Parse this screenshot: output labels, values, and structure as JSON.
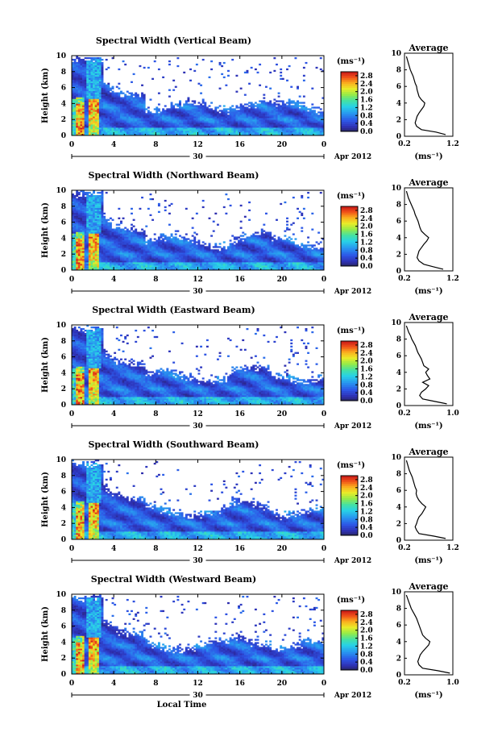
{
  "chart_data": [
    {
      "type": "heatmap",
      "title": "Spectral Width (Vertical Beam)",
      "ylabel": "Height (km)",
      "y_ticks": [
        "0",
        "2",
        "4",
        "6",
        "8",
        "10"
      ],
      "x_ticks": [
        "0",
        "4",
        "8",
        "12",
        "16",
        "20",
        "0"
      ],
      "date_day": "30",
      "date_label": "Apr 2012",
      "ylim": [
        0,
        10
      ],
      "xlim": [
        0,
        24
      ],
      "colorbar": {
        "unit": "(ms⁻¹)",
        "ticks": [
          "0.0",
          "0.4",
          "0.8",
          "1.2",
          "1.6",
          "2.0",
          "2.4",
          "2.8"
        ],
        "range": [
          0.0,
          3.0
        ]
      },
      "average_profile": {
        "title": "Average",
        "xlabel": "(ms⁻¹)",
        "x_ticks": [
          "0.2",
          "1.2"
        ],
        "xlim": [
          0.2,
          1.2
        ],
        "ylim": [
          0,
          10
        ],
        "y_ticks": [
          "0",
          "2",
          "4",
          "6",
          "8",
          "10"
        ],
        "heights": [
          0.2,
          0.5,
          0.8,
          1.2,
          1.6,
          2.0,
          2.4,
          2.8,
          3.2,
          3.6,
          4.0,
          4.4,
          4.8,
          5.2,
          5.6,
          6.0,
          6.4,
          6.8,
          7.2,
          7.6,
          8.0,
          8.4,
          8.8,
          9.2,
          9.6
        ],
        "values": [
          1.05,
          0.85,
          0.55,
          0.45,
          0.42,
          0.44,
          0.46,
          0.5,
          0.55,
          0.6,
          0.62,
          0.55,
          0.5,
          0.48,
          0.46,
          0.45,
          0.42,
          0.4,
          0.38,
          0.35,
          0.32,
          0.3,
          0.28,
          0.26,
          0.24
        ]
      }
    },
    {
      "type": "heatmap",
      "title": "Spectral Width (Northward Beam)",
      "ylabel": "Height (km)",
      "y_ticks": [
        "0",
        "2",
        "4",
        "6",
        "8",
        "10"
      ],
      "x_ticks": [
        "0",
        "4",
        "8",
        "12",
        "16",
        "20",
        "0"
      ],
      "date_day": "30",
      "date_label": "Apr 2012",
      "ylim": [
        0,
        10
      ],
      "xlim": [
        0,
        24
      ],
      "colorbar": {
        "unit": "(ms⁻¹)",
        "ticks": [
          "0.0",
          "0.4",
          "0.8",
          "1.2",
          "1.6",
          "2.0",
          "2.4",
          "2.8"
        ],
        "range": [
          0.0,
          3.0
        ]
      },
      "average_profile": {
        "title": "Average",
        "xlabel": "(ms⁻¹)",
        "x_ticks": [
          "0.2",
          "1.2"
        ],
        "xlim": [
          0.2,
          1.2
        ],
        "ylim": [
          0,
          10
        ],
        "y_ticks": [
          "0",
          "2",
          "4",
          "6",
          "8",
          "10"
        ],
        "heights": [
          0.2,
          0.5,
          0.8,
          1.2,
          1.6,
          2.0,
          2.4,
          2.8,
          3.2,
          3.6,
          4.0,
          4.4,
          4.8,
          5.2,
          5.6,
          6.0,
          6.4,
          6.8,
          7.2,
          7.6,
          8.0,
          8.4,
          8.8,
          9.2,
          9.6
        ],
        "values": [
          1.0,
          0.8,
          0.6,
          0.5,
          0.46,
          0.48,
          0.5,
          0.55,
          0.6,
          0.66,
          0.7,
          0.62,
          0.55,
          0.52,
          0.5,
          0.48,
          0.45,
          0.42,
          0.4,
          0.37,
          0.34,
          0.31,
          0.28,
          0.26,
          0.24
        ]
      }
    },
    {
      "type": "heatmap",
      "title": "Spectral Width (Eastward Beam)",
      "ylabel": "Height (km)",
      "y_ticks": [
        "0",
        "2",
        "4",
        "6",
        "8",
        "10"
      ],
      "x_ticks": [
        "0",
        "4",
        "8",
        "12",
        "16",
        "20",
        "0"
      ],
      "date_day": "30",
      "date_label": "Apr 2012",
      "ylim": [
        0,
        10
      ],
      "xlim": [
        0,
        24
      ],
      "colorbar": {
        "unit": "(ms⁻¹)",
        "ticks": [
          "0.0",
          "0.4",
          "0.8",
          "1.2",
          "1.6",
          "2.0",
          "2.4",
          "2.8"
        ],
        "range": [
          0.0,
          3.0
        ]
      },
      "average_profile": {
        "title": "Average",
        "xlabel": "(ms⁻¹)",
        "x_ticks": [
          "0.2",
          "1.0"
        ],
        "xlim": [
          0.2,
          1.0
        ],
        "ylim": [
          0,
          10
        ],
        "y_ticks": [
          "0",
          "2",
          "4",
          "6",
          "8",
          "10"
        ],
        "heights": [
          0.2,
          0.5,
          0.8,
          1.2,
          1.6,
          2.0,
          2.4,
          2.8,
          3.2,
          3.6,
          4.0,
          4.4,
          4.8,
          5.2,
          5.6,
          6.0,
          6.4,
          6.8,
          7.2,
          7.6,
          8.0,
          8.4,
          8.8,
          9.2,
          9.6
        ],
        "values": [
          0.9,
          0.7,
          0.5,
          0.45,
          0.48,
          0.55,
          0.6,
          0.5,
          0.62,
          0.58,
          0.55,
          0.6,
          0.52,
          0.5,
          0.48,
          0.45,
          0.42,
          0.4,
          0.38,
          0.35,
          0.32,
          0.3,
          0.27,
          0.25,
          0.23
        ]
      }
    },
    {
      "type": "heatmap",
      "title": "Spectral Width (Southward Beam)",
      "ylabel": "Height (km)",
      "y_ticks": [
        "0",
        "2",
        "4",
        "6",
        "8",
        "10"
      ],
      "x_ticks": [
        "0",
        "4",
        "8",
        "12",
        "16",
        "20",
        "0"
      ],
      "date_day": "30",
      "date_label": "Apr 2012",
      "ylim": [
        0,
        10
      ],
      "xlim": [
        0,
        24
      ],
      "colorbar": {
        "unit": "(ms⁻¹)",
        "ticks": [
          "0.0",
          "0.4",
          "0.8",
          "1.2",
          "1.6",
          "2.0",
          "2.4",
          "2.8"
        ],
        "range": [
          0.0,
          3.0
        ]
      },
      "average_profile": {
        "title": "Average",
        "xlabel": "(ms⁻¹)",
        "x_ticks": [
          "0.2",
          "1.2"
        ],
        "xlim": [
          0.2,
          1.2
        ],
        "ylim": [
          0,
          10
        ],
        "y_ticks": [
          "0",
          "2",
          "4",
          "6",
          "8",
          "10"
        ],
        "heights": [
          0.2,
          0.5,
          0.8,
          1.2,
          1.6,
          2.0,
          2.4,
          2.8,
          3.2,
          3.6,
          4.0,
          4.4,
          4.8,
          5.2,
          5.6,
          6.0,
          6.4,
          6.8,
          7.2,
          7.6,
          8.0,
          8.4,
          8.8,
          9.2,
          9.6
        ],
        "values": [
          1.05,
          0.8,
          0.5,
          0.45,
          0.42,
          0.45,
          0.47,
          0.5,
          0.56,
          0.6,
          0.64,
          0.56,
          0.5,
          0.46,
          0.44,
          0.45,
          0.42,
          0.4,
          0.38,
          0.36,
          0.33,
          0.3,
          0.28,
          0.26,
          0.24
        ]
      }
    },
    {
      "type": "heatmap",
      "title": "Spectral Width (Westward Beam)",
      "ylabel": "Height (km)",
      "y_ticks": [
        "0",
        "2",
        "4",
        "6",
        "8",
        "10"
      ],
      "x_ticks": [
        "0",
        "4",
        "8",
        "12",
        "16",
        "20",
        "0"
      ],
      "date_day": "30",
      "date_label": "Apr 2012",
      "xlabel": "Local Time",
      "ylim": [
        0,
        10
      ],
      "xlim": [
        0,
        24
      ],
      "colorbar": {
        "unit": "(ms⁻¹)",
        "ticks": [
          "0.0",
          "0.4",
          "0.8",
          "1.2",
          "1.6",
          "2.0",
          "2.4",
          "2.8"
        ],
        "range": [
          0.0,
          3.0
        ]
      },
      "average_profile": {
        "title": "Average",
        "xlabel": "(ms⁻¹)",
        "x_ticks": [
          "0.2",
          "1.0"
        ],
        "xlim": [
          0.2,
          1.0
        ],
        "ylim": [
          0,
          10
        ],
        "y_ticks": [
          "0",
          "2",
          "4",
          "6",
          "8",
          "10"
        ],
        "heights": [
          0.2,
          0.5,
          0.8,
          1.2,
          1.6,
          2.0,
          2.4,
          2.8,
          3.2,
          3.6,
          4.0,
          4.4,
          4.8,
          5.2,
          5.6,
          6.0,
          6.4,
          6.8,
          7.2,
          7.6,
          8.0,
          8.4,
          8.8,
          9.2,
          9.6
        ],
        "values": [
          0.95,
          0.75,
          0.5,
          0.44,
          0.42,
          0.44,
          0.46,
          0.5,
          0.55,
          0.6,
          0.62,
          0.55,
          0.5,
          0.48,
          0.46,
          0.44,
          0.42,
          0.4,
          0.37,
          0.34,
          0.31,
          0.29,
          0.27,
          0.25,
          0.23
        ]
      }
    }
  ]
}
